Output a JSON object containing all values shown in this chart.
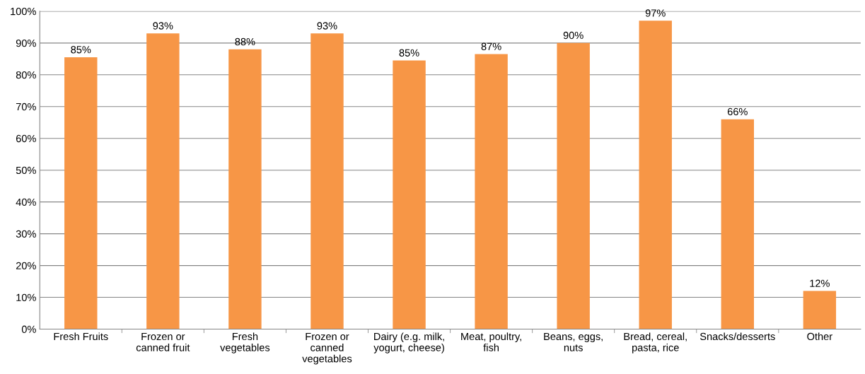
{
  "chart_data": {
    "type": "bar",
    "categories": [
      "Fresh Fruits",
      "Frozen or\ncanned fruit",
      "Fresh\nvegetables",
      "Frozen or\ncanned\nvegetables",
      "Dairy (e.g. milk,\nyogurt, cheese)",
      "Meat, poultry,\nfish",
      "Beans, eggs,\nnuts",
      "Bread, cereal,\npasta, rice",
      "Snacks/desserts",
      "Other"
    ],
    "values": [
      85.5,
      93,
      88,
      93,
      84.5,
      86.5,
      90,
      97,
      66,
      12
    ],
    "value_labels": [
      "85%",
      "93%",
      "88%",
      "93%",
      "85%",
      "87%",
      "90%",
      "97%",
      "66%",
      "12%"
    ],
    "color": "#f79646",
    "ylim": [
      0,
      100
    ],
    "yticks": [
      {
        "value": 0,
        "label": "0%"
      },
      {
        "value": 10,
        "label": "10%"
      },
      {
        "value": 20,
        "label": "20%"
      },
      {
        "value": 30,
        "label": "30%"
      },
      {
        "value": 40,
        "label": "40%"
      },
      {
        "value": 50,
        "label": "50%"
      },
      {
        "value": 60,
        "label": "60%"
      },
      {
        "value": 70,
        "label": "70%"
      },
      {
        "value": 80,
        "label": "80%"
      },
      {
        "value": 90,
        "label": "90%"
      },
      {
        "value": 100,
        "label": "100%"
      }
    ],
    "grid": "y"
  }
}
